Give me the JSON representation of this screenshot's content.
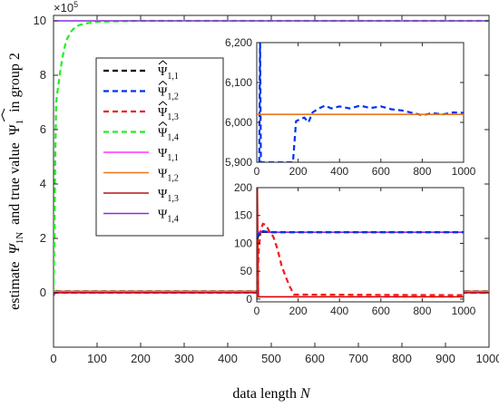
{
  "chart_data": [
    {
      "type": "line",
      "role": "main",
      "xlabel": "data length",
      "xlabel_var": "N",
      "ylabel_prefix": "estimate",
      "ylabel_mid": "and true value",
      "ylabel_suffix": "in group 2",
      "ylabel_hat_symbol": "Ψ",
      "ylabel_hat_sub": "1N",
      "ylabel_true_symbol": "Ψ",
      "ylabel_true_sub": "1",
      "multiplier_label": "×10",
      "multiplier_exp": "5",
      "xlim": [
        0,
        1000
      ],
      "ylim": [
        -2,
        10.2
      ],
      "x_ticks": [
        0,
        100,
        200,
        300,
        400,
        500,
        600,
        700,
        800,
        900,
        1000
      ],
      "y_ticks": [
        0,
        2,
        4,
        6,
        8,
        10
      ],
      "grid": false,
      "legend_position": "upper-left",
      "series": [
        {
          "name_symbol": "Ψ",
          "name_sub": "1,1",
          "hat": true,
          "style": "dashed",
          "color": "#000000",
          "x": [
            0,
            5,
            1000
          ],
          "y": [
            -0.05,
            0.012,
            0.012
          ]
        },
        {
          "name_symbol": "Ψ",
          "name_sub": "1,2",
          "hat": true,
          "style": "dashed",
          "color": "#0033ee",
          "x": [
            0,
            3,
            8,
            1000
          ],
          "y": [
            -0.1,
            0.15,
            0.06,
            0.06
          ]
        },
        {
          "name_symbol": "Ψ",
          "name_sub": "1,3",
          "hat": true,
          "style": "dashed",
          "color": "#ee1c1c",
          "x": [
            0,
            5,
            1000
          ],
          "y": [
            -0.03,
            0.002,
            0.0008
          ]
        },
        {
          "name_symbol": "Ψ",
          "name_sub": "1,4",
          "hat": true,
          "style": "dashed",
          "color": "#22ee22",
          "x": [
            0,
            2,
            4,
            6,
            10,
            15,
            20,
            25,
            30,
            40,
            50,
            60,
            80,
            100,
            130,
            160,
            200,
            1000
          ],
          "y": [
            0,
            2,
            5,
            7,
            7.5,
            8.1,
            8.6,
            9.0,
            9.3,
            9.6,
            9.78,
            9.85,
            9.92,
            9.96,
            9.98,
            9.99,
            10.0,
            10.0
          ]
        },
        {
          "name_symbol": "Ψ",
          "name_sub": "1,1",
          "hat": false,
          "style": "solid",
          "color": "#ff33ff",
          "x": [
            0,
            1000
          ],
          "y": [
            0.012,
            0.012
          ]
        },
        {
          "name_symbol": "Ψ",
          "name_sub": "1,2",
          "hat": false,
          "style": "solid",
          "color": "#e87722",
          "x": [
            0,
            1000
          ],
          "y": [
            0.06,
            0.06
          ]
        },
        {
          "name_symbol": "Ψ",
          "name_sub": "1,3",
          "hat": false,
          "style": "solid",
          "color": "#b81414",
          "x": [
            0,
            1000
          ],
          "y": [
            0.0008,
            0.0008
          ]
        },
        {
          "name_symbol": "Ψ",
          "name_sub": "1,4",
          "hat": false,
          "style": "solid",
          "color": "#8a2be2",
          "x": [
            0,
            1000
          ],
          "y": [
            10.0,
            10.0
          ]
        }
      ]
    },
    {
      "type": "line",
      "role": "inset-top",
      "xlim": [
        0,
        1000
      ],
      "ylim": [
        5900,
        6200
      ],
      "x_ticks": [
        0,
        200,
        400,
        600,
        800,
        1000
      ],
      "y_ticks": [
        5900,
        6000,
        6100,
        6200
      ],
      "y_tick_labels": [
        "5,900",
        "6,000",
        "6,100",
        "6,200"
      ],
      "series": [
        {
          "hat": true,
          "style": "dashed",
          "color": "#0033ee",
          "x": [
            12,
            16,
            20,
            175,
            190,
            210,
            230,
            250,
            270,
            300,
            330,
            360,
            400,
            450,
            500,
            550,
            600,
            650,
            700,
            750,
            800,
            850,
            900,
            950,
            1000
          ],
          "y": [
            5900,
            6220,
            5900,
            5900,
            6003,
            6008,
            6012,
            6000,
            6025,
            6035,
            6042,
            6035,
            6040,
            6035,
            6042,
            6036,
            6040,
            6033,
            6030,
            6024,
            6018,
            6023,
            6020,
            6025,
            6024
          ]
        },
        {
          "hat": false,
          "style": "solid",
          "color": "#e87722",
          "x": [
            0,
            1000
          ],
          "y": [
            6020,
            6020
          ]
        }
      ]
    },
    {
      "type": "line",
      "role": "inset-bottom",
      "xlim": [
        0,
        1000
      ],
      "ylim": [
        -5,
        200
      ],
      "x_ticks": [
        0,
        200,
        400,
        600,
        800,
        1000
      ],
      "y_ticks": [
        0,
        50,
        100,
        150,
        200
      ],
      "series": [
        {
          "hat": false,
          "style": "solid",
          "color": "#e00000",
          "x": [
            0,
            3,
            8,
            1000
          ],
          "y": [
            0,
            200,
            4,
            4
          ]
        },
        {
          "hat": true,
          "style": "dashed",
          "color": "#ee1c1c",
          "x": [
            0,
            10,
            20,
            30,
            45,
            60,
            80,
            100,
            120,
            140,
            160,
            180,
            200,
            1000
          ],
          "y": [
            0,
            90,
            125,
            135,
            133,
            122,
            112,
            90,
            60,
            40,
            22,
            8,
            8,
            7
          ]
        },
        {
          "hat": false,
          "style": "solid",
          "color": "#8a2be2",
          "x": [
            0,
            1000
          ],
          "y": [
            120,
            120
          ]
        },
        {
          "hat": true,
          "style": "dashed",
          "color": "#000000",
          "x": [
            0,
            15,
            30,
            60,
            1000
          ],
          "y": [
            108,
            118,
            121,
            120,
            120
          ]
        },
        {
          "hat": true,
          "style": "dashed",
          "color": "#0033ee",
          "x": [
            0,
            15,
            30,
            60,
            1000
          ],
          "y": [
            110,
            120,
            122,
            120,
            120
          ]
        }
      ]
    }
  ]
}
